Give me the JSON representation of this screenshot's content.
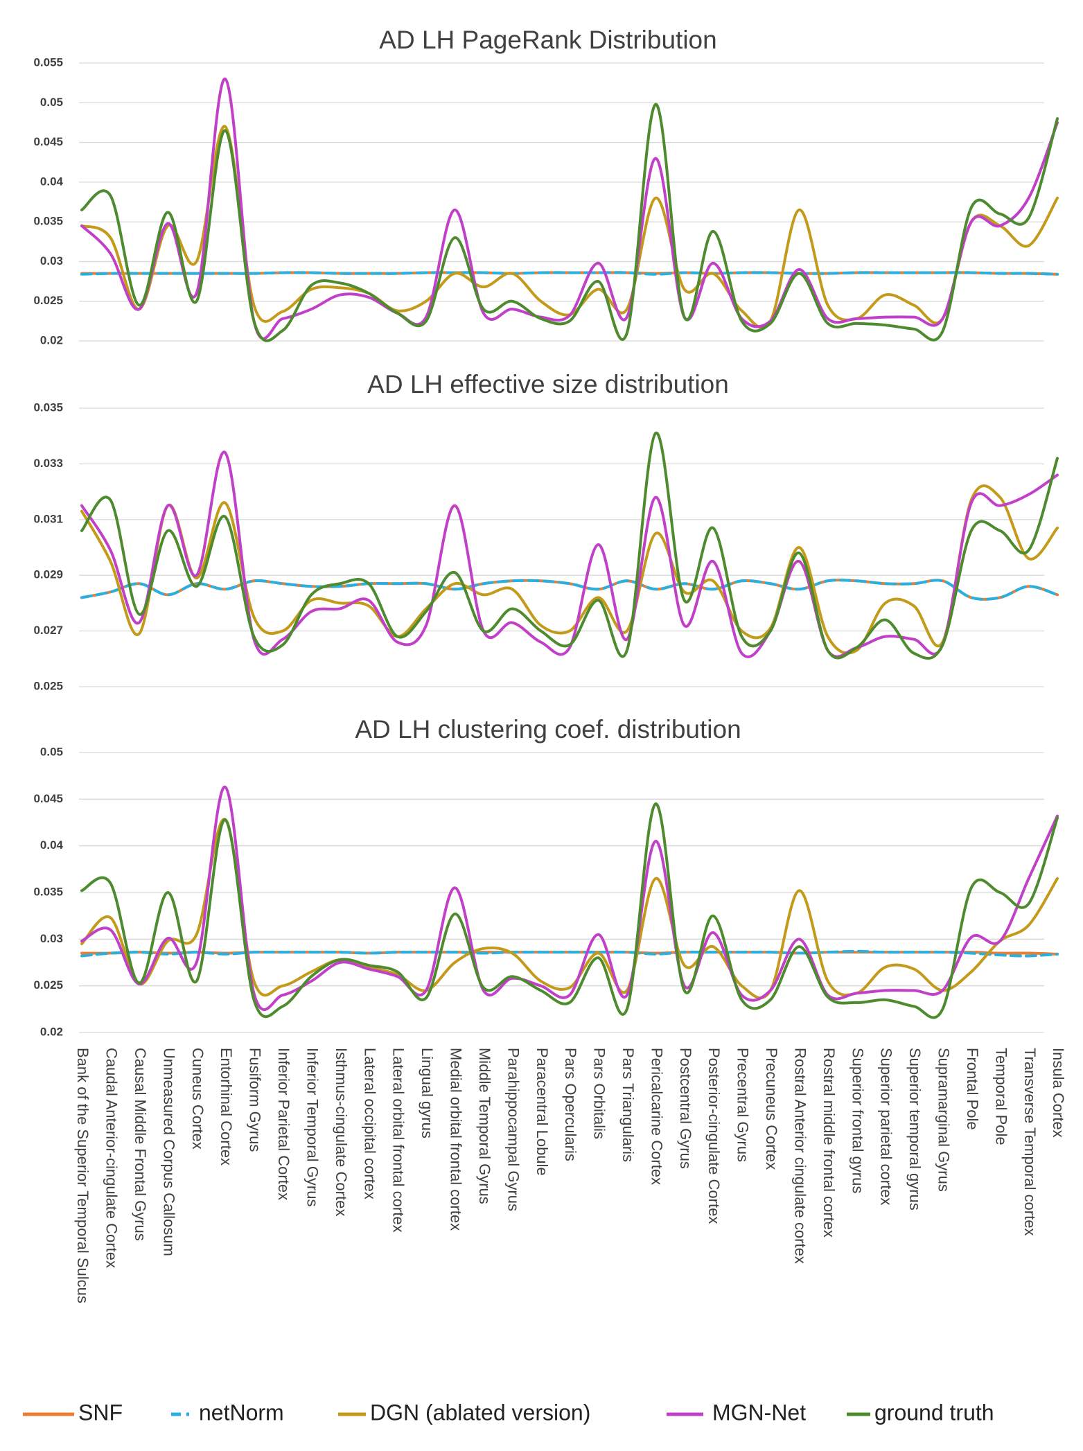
{
  "chart_data": [
    {
      "type": "line",
      "title": "AD LH PageRank Distribution",
      "ylim": [
        0.02,
        0.055
      ],
      "yticks": [
        0.02,
        0.025,
        0.03,
        0.035,
        0.04,
        0.045,
        0.05,
        0.055
      ],
      "grid": true,
      "legend": "bottom",
      "series": [
        {
          "name": "SNF",
          "color": "#ed7d31",
          "values": [
            0.0285,
            0.0285,
            0.0285,
            0.0285,
            0.0285,
            0.0285,
            0.0285,
            0.0286,
            0.0286,
            0.0285,
            0.0285,
            0.0285,
            0.0286,
            0.0286,
            0.0286,
            0.0285,
            0.0286,
            0.0286,
            0.0286,
            0.0286,
            0.0285,
            0.0286,
            0.0285,
            0.0286,
            0.0286,
            0.0285,
            0.0285,
            0.0286,
            0.0286,
            0.0286,
            0.0286,
            0.0286,
            0.0285,
            0.0285,
            0.0284
          ]
        },
        {
          "name": "netNorm",
          "color": "#2ab0e0",
          "style": "dashed",
          "values": [
            0.0284,
            0.0285,
            0.0285,
            0.0285,
            0.0285,
            0.0285,
            0.0285,
            0.0286,
            0.0286,
            0.0285,
            0.0285,
            0.0285,
            0.0286,
            0.0286,
            0.0286,
            0.0285,
            0.0286,
            0.0286,
            0.0286,
            0.0286,
            0.0284,
            0.0286,
            0.0285,
            0.0286,
            0.0286,
            0.0285,
            0.0285,
            0.0286,
            0.0286,
            0.0286,
            0.0286,
            0.0286,
            0.0285,
            0.0285,
            0.0284
          ]
        },
        {
          "name": "DGN (ablated version)",
          "color": "#c49a1a",
          "values": [
            0.0345,
            0.033,
            0.024,
            0.0345,
            0.03,
            0.047,
            0.0245,
            0.0237,
            0.0265,
            0.0267,
            0.026,
            0.0238,
            0.025,
            0.0285,
            0.0268,
            0.0285,
            0.025,
            0.0233,
            0.0265,
            0.024,
            0.038,
            0.0265,
            0.0285,
            0.0238,
            0.0225,
            0.0365,
            0.0245,
            0.0228,
            0.0258,
            0.0245,
            0.0228,
            0.035,
            0.0345,
            0.032,
            0.038
          ]
        },
        {
          "name": "MGN-Net",
          "color": "#c040c8",
          "values": [
            0.0345,
            0.031,
            0.024,
            0.0348,
            0.026,
            0.053,
            0.0225,
            0.0228,
            0.024,
            0.0258,
            0.0255,
            0.0235,
            0.023,
            0.0365,
            0.0235,
            0.024,
            0.023,
            0.0232,
            0.0298,
            0.023,
            0.043,
            0.023,
            0.0298,
            0.0228,
            0.0225,
            0.029,
            0.0228,
            0.0228,
            0.023,
            0.023,
            0.0228,
            0.035,
            0.0345,
            0.038,
            0.0475
          ]
        },
        {
          "name": "ground truth",
          "color": "#4e8a2e",
          "values": [
            0.0365,
            0.0383,
            0.0245,
            0.0362,
            0.025,
            0.0465,
            0.0225,
            0.0213,
            0.027,
            0.0273,
            0.026,
            0.0235,
            0.0225,
            0.033,
            0.024,
            0.025,
            0.0228,
            0.0225,
            0.0275,
            0.021,
            0.0498,
            0.023,
            0.0338,
            0.0225,
            0.0222,
            0.0285,
            0.0222,
            0.0222,
            0.022,
            0.0215,
            0.0212,
            0.0368,
            0.036,
            0.0355,
            0.048
          ]
        }
      ]
    },
    {
      "type": "line",
      "title": "AD LH effective size distribution",
      "ylim": [
        0.025,
        0.035
      ],
      "yticks": [
        0.025,
        0.027,
        0.029,
        0.031,
        0.033,
        0.035
      ],
      "grid": true,
      "series": [
        {
          "name": "SNF",
          "color": "#ed7d31",
          "values": [
            0.0282,
            0.0284,
            0.0287,
            0.0283,
            0.0287,
            0.0285,
            0.0288,
            0.0287,
            0.0286,
            0.0286,
            0.0287,
            0.0287,
            0.0287,
            0.0285,
            0.0287,
            0.0288,
            0.0288,
            0.0287,
            0.0285,
            0.0288,
            0.0285,
            0.0287,
            0.0285,
            0.0288,
            0.0287,
            0.0285,
            0.0288,
            0.0288,
            0.0287,
            0.0287,
            0.0288,
            0.0282,
            0.0282,
            0.0286,
            0.0283
          ]
        },
        {
          "name": "netNorm",
          "color": "#2ab0e0",
          "style": "dashed",
          "values": [
            0.0282,
            0.0284,
            0.0287,
            0.0283,
            0.0287,
            0.0285,
            0.0288,
            0.0287,
            0.0286,
            0.0286,
            0.0287,
            0.0287,
            0.0287,
            0.0285,
            0.0287,
            0.0288,
            0.0288,
            0.0287,
            0.0285,
            0.0288,
            0.0285,
            0.0287,
            0.0285,
            0.0288,
            0.0287,
            0.0285,
            0.0288,
            0.0288,
            0.0287,
            0.0287,
            0.0288,
            0.0282,
            0.0282,
            0.0286,
            0.0283
          ]
        },
        {
          "name": "DGN (ablated version)",
          "color": "#c49a1a",
          "values": [
            0.0313,
            0.0295,
            0.0269,
            0.0315,
            0.0289,
            0.0316,
            0.0275,
            0.027,
            0.0281,
            0.028,
            0.0279,
            0.0268,
            0.0278,
            0.0287,
            0.0283,
            0.0285,
            0.0272,
            0.027,
            0.0282,
            0.027,
            0.0305,
            0.0284,
            0.0288,
            0.027,
            0.0271,
            0.03,
            0.0268,
            0.0263,
            0.028,
            0.0279,
            0.0266,
            0.0317,
            0.0318,
            0.0296,
            0.0307
          ]
        },
        {
          "name": "MGN-Net",
          "color": "#c040c8",
          "values": [
            0.0315,
            0.0299,
            0.0273,
            0.0315,
            0.029,
            0.0334,
            0.0267,
            0.0267,
            0.0277,
            0.0278,
            0.0281,
            0.0266,
            0.0272,
            0.0315,
            0.027,
            0.0273,
            0.0266,
            0.0264,
            0.0301,
            0.0267,
            0.0318,
            0.0272,
            0.0295,
            0.0262,
            0.027,
            0.0295,
            0.0263,
            0.0264,
            0.0268,
            0.0267,
            0.0265,
            0.0316,
            0.0315,
            0.0319,
            0.0326
          ]
        },
        {
          "name": "ground truth",
          "color": "#4e8a2e",
          "values": [
            0.0306,
            0.0317,
            0.0276,
            0.0306,
            0.0286,
            0.0311,
            0.0268,
            0.0265,
            0.0283,
            0.0287,
            0.0287,
            0.0268,
            0.0277,
            0.0291,
            0.027,
            0.0278,
            0.027,
            0.0265,
            0.0281,
            0.0263,
            0.0341,
            0.0281,
            0.0307,
            0.0268,
            0.027,
            0.0298,
            0.0263,
            0.0264,
            0.0274,
            0.0262,
            0.0265,
            0.0306,
            0.0306,
            0.0299,
            0.0332
          ]
        }
      ]
    },
    {
      "type": "line",
      "title": "AD LH clustering coef. distribution",
      "ylim": [
        0.02,
        0.05
      ],
      "yticks": [
        0.02,
        0.025,
        0.03,
        0.035,
        0.04,
        0.045,
        0.05
      ],
      "grid": true,
      "categories": [
        "Bank of the Superior Temporal Sulcus",
        "Caudal Anterior-cingulate Cortex",
        "Causal Middle Frontal Gyrus",
        "Unmeasured Corpus Callosum",
        "Cuneus Cortex",
        "Entorhinal Cortex",
        "Fusiform Gyrus",
        "Inferior Parietal Cortex",
        "Inferior Temporal Gyrus",
        "Isthmus-cingulate Cortex",
        "Lateral occipital cortex",
        "Lateral orbital frontal cortex",
        "Lingual gyrus",
        "Medial orbital frontal cortex",
        "Middle Temporal Gyrus",
        "Parahippocampal Gyrus",
        "Paracentral Lobule",
        "Pars Opercularis",
        "Pars Orbitalis",
        "Pars Triangularis",
        "Pericalcarine Cortex",
        "Postcentral Gyrus",
        "Posterior-cingulate Cortex",
        "Precentral Gyrus",
        "Precuneus Cortex",
        "Rostral Anterior cingulate cortex",
        "Rostral middle frontal cortex",
        "Superior frontal gyrus",
        "Superior parietal cortex",
        "Superior temporal gyrus",
        "Supramarginal Gyrus",
        "Frontal Pole",
        "Temporal Pole",
        "Transverse Temporal cortex",
        "Insula Cortex"
      ],
      "series": [
        {
          "name": "SNF",
          "color": "#ed7d31",
          "values": [
            0.0285,
            0.0285,
            0.0286,
            0.0285,
            0.0286,
            0.0285,
            0.0286,
            0.0286,
            0.0286,
            0.0286,
            0.0285,
            0.0286,
            0.0286,
            0.0286,
            0.0286,
            0.0286,
            0.0286,
            0.0286,
            0.0286,
            0.0286,
            0.0285,
            0.0286,
            0.0286,
            0.0286,
            0.0286,
            0.0285,
            0.0286,
            0.0286,
            0.0286,
            0.0286,
            0.0286,
            0.0286,
            0.0285,
            0.0285,
            0.0284
          ]
        },
        {
          "name": "netNorm",
          "color": "#2ab0e0",
          "style": "dashed",
          "values": [
            0.0282,
            0.0285,
            0.0286,
            0.0284,
            0.0286,
            0.0284,
            0.0286,
            0.0286,
            0.0286,
            0.0286,
            0.0285,
            0.0286,
            0.0286,
            0.0286,
            0.0285,
            0.0286,
            0.0286,
            0.0286,
            0.0286,
            0.0286,
            0.0284,
            0.0286,
            0.0286,
            0.0286,
            0.0286,
            0.0285,
            0.0286,
            0.0287,
            0.0286,
            0.0286,
            0.0286,
            0.0285,
            0.0283,
            0.0282,
            0.0284
          ]
        },
        {
          "name": "DGN (ablated version)",
          "color": "#c49a1a",
          "values": [
            0.0295,
            0.0323,
            0.0252,
            0.0298,
            0.0305,
            0.0428,
            0.0255,
            0.025,
            0.0265,
            0.0278,
            0.027,
            0.0262,
            0.0245,
            0.0275,
            0.029,
            0.0285,
            0.0255,
            0.0248,
            0.0285,
            0.0245,
            0.0365,
            0.0272,
            0.0292,
            0.025,
            0.0245,
            0.0352,
            0.0255,
            0.0242,
            0.027,
            0.0268,
            0.0245,
            0.0265,
            0.0298,
            0.0315,
            0.0365
          ]
        },
        {
          "name": "MGN-Net",
          "color": "#c040c8",
          "values": [
            0.0298,
            0.031,
            0.0252,
            0.0301,
            0.0275,
            0.0463,
            0.0242,
            0.024,
            0.0255,
            0.0275,
            0.0268,
            0.026,
            0.0245,
            0.0355,
            0.0245,
            0.0258,
            0.025,
            0.024,
            0.0305,
            0.024,
            0.0405,
            0.025,
            0.0307,
            0.024,
            0.0245,
            0.03,
            0.024,
            0.0242,
            0.0245,
            0.0245,
            0.0245,
            0.0302,
            0.0298,
            0.0365,
            0.0432
          ]
        },
        {
          "name": "ground truth",
          "color": "#4e8a2e",
          "values": [
            0.0352,
            0.036,
            0.0253,
            0.035,
            0.0255,
            0.0428,
            0.0235,
            0.0228,
            0.026,
            0.0278,
            0.0272,
            0.0265,
            0.0237,
            0.0327,
            0.0248,
            0.026,
            0.0245,
            0.0232,
            0.028,
            0.0225,
            0.0445,
            0.0245,
            0.0325,
            0.0235,
            0.0235,
            0.0292,
            0.0238,
            0.0232,
            0.0235,
            0.0228,
            0.0225,
            0.0355,
            0.035,
            0.0338,
            0.043
          ]
        }
      ]
    }
  ]
}
